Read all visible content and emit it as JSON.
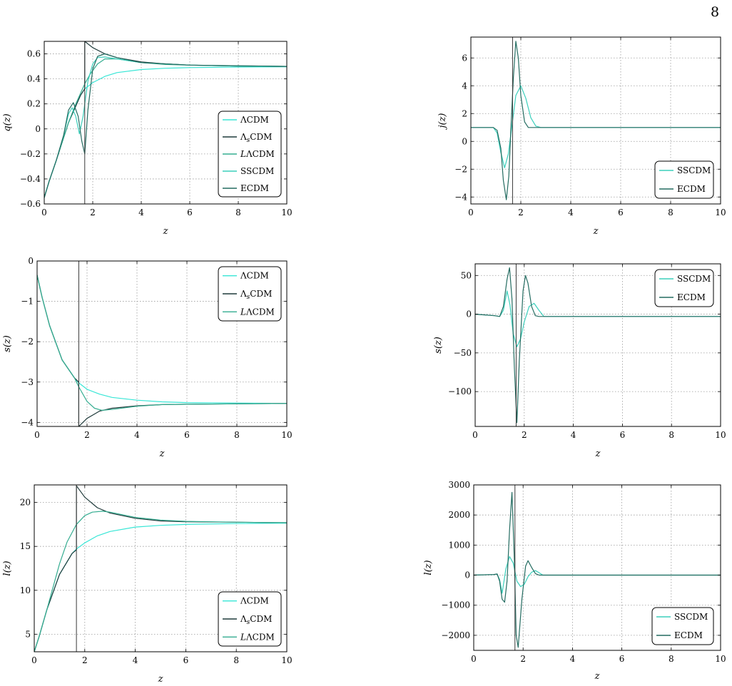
{
  "page_number": "8",
  "colors": {
    "LCDM": "#38e6d6",
    "LsCDM": "#1f3a3a",
    "LLCDM": "#35ad91",
    "SSCDM": "#3ccfbc",
    "ECDM": "#246c61"
  },
  "chart_data": [
    {
      "id": "q-lambda",
      "type": "line",
      "title": "",
      "xlabel": "z",
      "ylabel": "q(z)",
      "xlim": [
        0,
        10
      ],
      "ylim": [
        -0.6,
        0.7
      ],
      "xticks": [
        0,
        2,
        4,
        6,
        8,
        10
      ],
      "xtick_labels": [
        "0",
        "2",
        "4",
        "6",
        "8",
        "10"
      ],
      "yticks": [
        -0.6,
        -0.4,
        -0.2,
        0,
        0.2,
        0.4,
        0.6
      ],
      "ytick_labels": [
        "−0.6",
        "−0.4",
        "−0.2",
        "0",
        "0.2",
        "0.4",
        "0.6"
      ],
      "grid": true,
      "vline": 1.67,
      "legend_position": "lower-right",
      "legend": [
        "ΛCDM",
        "Λ_sCDM",
        "LΛCDM",
        "SSCDM",
        "ECDM"
      ],
      "series": [
        {
          "name": "ΛCDM",
          "color": "#38e6d6",
          "x": [
            0,
            0.2,
            0.5,
            1,
            1.5,
            1.67,
            2,
            2.5,
            3,
            4,
            5,
            6,
            8,
            10
          ],
          "y": [
            -0.55,
            -0.42,
            -0.25,
            0.05,
            0.27,
            0.32,
            0.37,
            0.42,
            0.45,
            0.475,
            0.485,
            0.49,
            0.495,
            0.497
          ]
        },
        {
          "name": "Λ_sCDM",
          "color": "#1f3a3a",
          "x": [
            0,
            0.2,
            0.5,
            1,
            1.5,
            1.669,
            1.67,
            1.67,
            2,
            2.5,
            3,
            4,
            5,
            6,
            8,
            10
          ],
          "y": [
            -0.55,
            -0.42,
            -0.25,
            0.05,
            0.27,
            0.32,
            0.33,
            0.7,
            0.65,
            0.6,
            0.57,
            0.535,
            0.52,
            0.51,
            0.502,
            0.5
          ]
        },
        {
          "name": "LΛCDM",
          "color": "#35ad91",
          "x": [
            0,
            0.2,
            0.5,
            1,
            1.3,
            1.67,
            1.9,
            2.2,
            2.5,
            3,
            4,
            5,
            6,
            8,
            10
          ],
          "y": [
            -0.55,
            -0.42,
            -0.25,
            0.05,
            0.2,
            0.36,
            0.44,
            0.52,
            0.56,
            0.56,
            0.53,
            0.515,
            0.51,
            0.502,
            0.5
          ]
        },
        {
          "name": "SSCDM",
          "color": "#3ccfbc",
          "x": [
            0,
            0.2,
            0.5,
            0.8,
            1.0,
            1.15,
            1.3,
            1.45,
            1.6,
            1.8,
            2.0,
            2.2,
            2.5,
            3,
            4,
            6,
            10
          ],
          "y": [
            -0.55,
            -0.42,
            -0.25,
            -0.05,
            0.12,
            0.17,
            0.1,
            -0.04,
            0.1,
            0.38,
            0.52,
            0.57,
            0.575,
            0.56,
            0.53,
            0.51,
            0.5
          ]
        },
        {
          "name": "ECDM",
          "color": "#246c61",
          "x": [
            0,
            0.2,
            0.5,
            0.8,
            1.0,
            1.2,
            1.4,
            1.55,
            1.67,
            1.8,
            2.0,
            2.2,
            2.5,
            3,
            4,
            6,
            10
          ],
          "y": [
            -0.55,
            -0.42,
            -0.25,
            -0.05,
            0.15,
            0.21,
            0.1,
            -0.1,
            -0.2,
            0.15,
            0.48,
            0.58,
            0.6,
            0.57,
            0.53,
            0.51,
            0.5
          ]
        }
      ]
    },
    {
      "id": "j-extended",
      "type": "line",
      "title": "",
      "xlabel": "z",
      "ylabel": "j(z)",
      "xlim": [
        0,
        10
      ],
      "ylim": [
        -4.5,
        7.5
      ],
      "xticks": [
        0,
        2,
        4,
        6,
        8,
        10
      ],
      "xtick_labels": [
        "0",
        "2",
        "4",
        "6",
        "8",
        "10"
      ],
      "yticks": [
        -4,
        -2,
        0,
        2,
        4,
        6
      ],
      "ytick_labels": [
        "−4",
        "−2",
        "0",
        "2",
        "4",
        "6"
      ],
      "grid": true,
      "vline": 1.67,
      "legend_position": "lower-right",
      "legend": [
        "SSCDM",
        "ECDM"
      ],
      "series": [
        {
          "name": "SSCDM",
          "color": "#3ccfbc",
          "x": [
            0,
            0.9,
            1.05,
            1.2,
            1.35,
            1.5,
            1.65,
            1.8,
            2.0,
            2.2,
            2.4,
            2.6,
            2.8,
            10
          ],
          "y": [
            1,
            1,
            0.6,
            -0.8,
            -1.9,
            -0.9,
            1.2,
            3.3,
            4.0,
            3.1,
            1.7,
            1.1,
            1,
            1
          ]
        },
        {
          "name": "ECDM",
          "color": "#246c61",
          "x": [
            0,
            0.9,
            1.05,
            1.2,
            1.3,
            1.42,
            1.52,
            1.6,
            1.7,
            1.8,
            1.9,
            2.0,
            2.15,
            2.3,
            2.5,
            2.7,
            10
          ],
          "y": [
            1,
            1,
            0.8,
            -0.5,
            -2.8,
            -4.2,
            -2.5,
            0.8,
            4.5,
            7.2,
            6.0,
            3.3,
            1.4,
            1.0,
            1,
            1,
            1
          ]
        }
      ]
    },
    {
      "id": "s-lambda",
      "type": "line",
      "title": "",
      "xlabel": "z",
      "ylabel": "s(z)",
      "xlim": [
        0,
        10
      ],
      "ylim": [
        -4.1,
        0
      ],
      "xticks": [
        0,
        2,
        4,
        6,
        8,
        10
      ],
      "xtick_labels": [
        "0",
        "2",
        "4",
        "6",
        "8",
        "10"
      ],
      "yticks": [
        -4,
        -3,
        -2,
        -1,
        0
      ],
      "ytick_labels": [
        "−4",
        "−3",
        "−2",
        "−1",
        "0"
      ],
      "grid": true,
      "vline": 1.67,
      "legend_position": "upper-right",
      "legend": [
        "ΛCDM",
        "Λ_sCDM",
        "LΛCDM"
      ],
      "series": [
        {
          "name": "ΛCDM",
          "color": "#38e6d6",
          "x": [
            0,
            0.2,
            0.5,
            1,
            1.5,
            1.67,
            2,
            2.5,
            3,
            4,
            5,
            6,
            8,
            10
          ],
          "y": [
            -0.35,
            -0.9,
            -1.6,
            -2.45,
            -2.9,
            -3.02,
            -3.18,
            -3.3,
            -3.38,
            -3.45,
            -3.49,
            -3.51,
            -3.52,
            -3.53
          ]
        },
        {
          "name": "Λ_sCDM",
          "color": "#1f3a3a",
          "x": [
            0,
            0.2,
            0.5,
            1,
            1.5,
            1.669,
            1.67,
            1.67,
            2,
            2.5,
            3,
            4,
            5,
            6,
            8,
            10
          ],
          "y": [
            -0.35,
            -0.9,
            -1.6,
            -2.45,
            -2.9,
            -3.0,
            -3.02,
            -4.1,
            -3.9,
            -3.72,
            -3.65,
            -3.59,
            -3.56,
            -3.55,
            -3.54,
            -3.53
          ]
        },
        {
          "name": "LΛCDM",
          "color": "#35ad91",
          "x": [
            0,
            0.2,
            0.5,
            1,
            1.5,
            1.67,
            2,
            2.3,
            2.6,
            3,
            4,
            5,
            6,
            8,
            10
          ],
          "y": [
            -0.35,
            -0.9,
            -1.6,
            -2.45,
            -2.9,
            -3.12,
            -3.48,
            -3.65,
            -3.7,
            -3.68,
            -3.6,
            -3.56,
            -3.55,
            -3.54,
            -3.53
          ]
        }
      ]
    },
    {
      "id": "s-extended",
      "type": "line",
      "title": "",
      "xlabel": "z",
      "ylabel": "s(z)",
      "xlim": [
        0,
        10
      ],
      "ylim": [
        -145,
        65
      ],
      "xticks": [
        0,
        2,
        4,
        6,
        8,
        10
      ],
      "xtick_labels": [
        "0",
        "2",
        "4",
        "6",
        "8",
        "10"
      ],
      "yticks": [
        -100,
        -50,
        0,
        50
      ],
      "ytick_labels": [
        "−100",
        "−50",
        "0",
        "50"
      ],
      "grid": true,
      "vline": 1.67,
      "legend_position": "upper-right",
      "legend": [
        "SSCDM",
        "ECDM"
      ],
      "series": [
        {
          "name": "SSCDM",
          "color": "#3ccfbc",
          "x": [
            0,
            0.8,
            1.0,
            1.15,
            1.3,
            1.42,
            1.55,
            1.7,
            1.85,
            2.0,
            2.2,
            2.4,
            2.6,
            2.8,
            10
          ],
          "y": [
            0,
            -2,
            -3,
            5,
            30,
            12,
            -25,
            -42,
            -32,
            -10,
            10,
            14,
            5,
            -3,
            -3
          ]
        },
        {
          "name": "ECDM",
          "color": "#246c61",
          "x": [
            0,
            0.8,
            1.0,
            1.15,
            1.3,
            1.4,
            1.5,
            1.6,
            1.7,
            1.8,
            1.95,
            2.05,
            2.15,
            2.3,
            2.45,
            2.6,
            10
          ],
          "y": [
            0,
            -2,
            -3,
            10,
            45,
            60,
            20,
            -70,
            -140,
            -60,
            30,
            50,
            40,
            10,
            -2,
            -3,
            -3
          ]
        }
      ]
    },
    {
      "id": "l-lambda",
      "type": "line",
      "title": "",
      "xlabel": "z",
      "ylabel": "l(z)",
      "xlim": [
        0,
        10
      ],
      "ylim": [
        3,
        22
      ],
      "xticks": [
        0,
        2,
        4,
        6,
        8,
        10
      ],
      "xtick_labels": [
        "0",
        "2",
        "4",
        "6",
        "8",
        "10"
      ],
      "yticks": [
        5,
        10,
        15,
        20
      ],
      "ytick_labels": [
        "5",
        "10",
        "15",
        "20"
      ],
      "grid": true,
      "vline": 1.67,
      "legend_position": "lower-right",
      "legend": [
        "ΛCDM",
        "Λ_sCDM",
        "LΛCDM"
      ],
      "series": [
        {
          "name": "ΛCDM",
          "color": "#38e6d6",
          "x": [
            0,
            0.2,
            0.5,
            1,
            1.5,
            1.67,
            2,
            2.5,
            3,
            4,
            5,
            6,
            8,
            10
          ],
          "y": [
            3,
            4.8,
            7.8,
            11.8,
            14.2,
            14.7,
            15.4,
            16.2,
            16.7,
            17.2,
            17.4,
            17.5,
            17.6,
            17.65
          ]
        },
        {
          "name": "Λ_sCDM",
          "color": "#1f3a3a",
          "x": [
            0,
            0.2,
            0.5,
            1,
            1.5,
            1.669,
            1.67,
            1.67,
            2,
            2.5,
            3,
            4,
            5,
            6,
            8,
            10
          ],
          "y": [
            3,
            4.8,
            7.8,
            11.8,
            14.2,
            14.6,
            14.7,
            21.9,
            20.6,
            19.4,
            18.8,
            18.2,
            17.9,
            17.8,
            17.75,
            17.7
          ]
        },
        {
          "name": "LΛCDM",
          "color": "#35ad91",
          "x": [
            0,
            0.2,
            0.5,
            1,
            1.3,
            1.67,
            2,
            2.3,
            2.7,
            3,
            4,
            5,
            6,
            8,
            10
          ],
          "y": [
            3,
            4.8,
            7.8,
            13.0,
            15.5,
            17.5,
            18.5,
            18.9,
            19.0,
            18.9,
            18.3,
            18.0,
            17.85,
            17.75,
            17.7
          ]
        }
      ]
    },
    {
      "id": "l-extended",
      "type": "line",
      "title": "",
      "xlabel": "z",
      "ylabel": "l(z)",
      "xlim": [
        0,
        10
      ],
      "ylim": [
        -2500,
        3000
      ],
      "xticks": [
        0,
        2,
        4,
        6,
        8,
        10
      ],
      "xtick_labels": [
        "0",
        "2",
        "4",
        "6",
        "8",
        "10"
      ],
      "yticks": [
        -2000,
        -1000,
        0,
        1000,
        2000,
        3000
      ],
      "ytick_labels": [
        "−2000",
        "−1000",
        "0",
        "1000",
        "2000",
        "3000"
      ],
      "grid": true,
      "vline": 1.67,
      "legend_position": "lower-right",
      "legend": [
        "SSCDM",
        "ECDM"
      ],
      "series": [
        {
          "name": "SSCDM",
          "color": "#3ccfbc",
          "x": [
            0,
            0.8,
            0.95,
            1.05,
            1.15,
            1.3,
            1.45,
            1.6,
            1.75,
            1.9,
            2.05,
            2.2,
            2.35,
            2.5,
            2.65,
            2.8,
            10
          ],
          "y": [
            0,
            20,
            30,
            -150,
            -600,
            200,
            620,
            400,
            -200,
            -380,
            -300,
            -50,
            100,
            150,
            80,
            0,
            0
          ]
        },
        {
          "name": "ECDM",
          "color": "#246c61",
          "x": [
            0,
            0.8,
            0.95,
            1.05,
            1.15,
            1.25,
            1.35,
            1.45,
            1.55,
            1.65,
            1.72,
            1.8,
            1.95,
            2.1,
            2.2,
            2.35,
            2.5,
            2.65,
            2.8,
            10
          ],
          "y": [
            0,
            20,
            40,
            -200,
            -800,
            -900,
            -200,
            1500,
            2750,
            400,
            -2000,
            -2400,
            -800,
            300,
            480,
            250,
            50,
            0,
            0,
            0
          ]
        }
      ]
    }
  ],
  "legend_samples_symbols": {
    "ΛCDM": "ΛCDM",
    "Λ_sCDM": "Λ_sCDM",
    "LΛCDM": "LΛCDM"
  }
}
